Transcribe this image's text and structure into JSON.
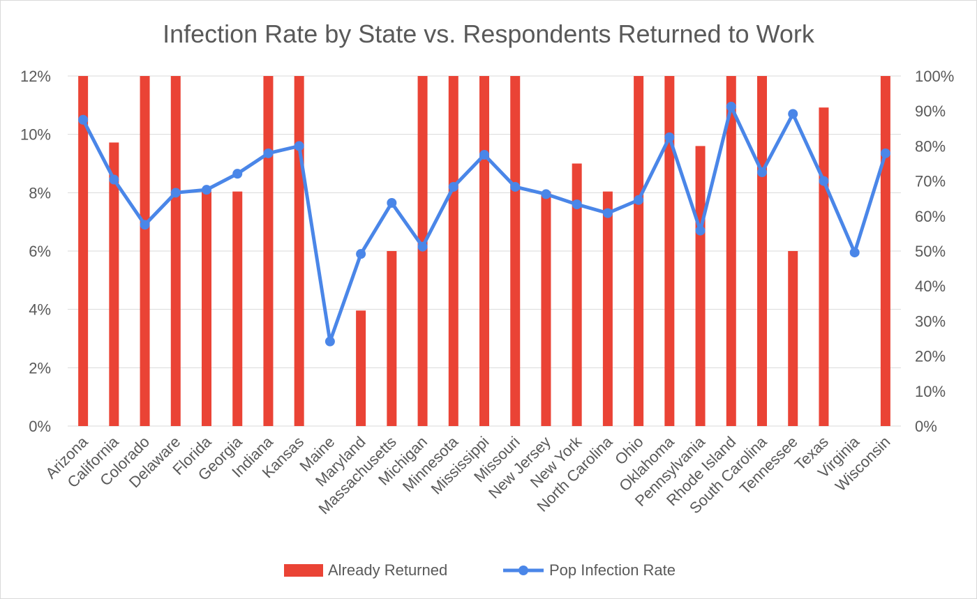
{
  "chart_data": {
    "type": "bar+line",
    "title": "Infection Rate by State vs. Respondents Returned to Work",
    "categories": [
      "Arizona",
      "California",
      "Colorado",
      "Delaware",
      "Florida",
      "Georgia",
      "Indiana",
      "Kansas",
      "Maine",
      "Maryland",
      "Massachusetts",
      "Michigan",
      "Minnesota",
      "Mississippi",
      "Missouri",
      "New Jersey",
      "New York",
      "North Carolina",
      "Ohio",
      "Oklahoma",
      "Pennsylvania",
      "Rhode Island",
      "South Carolina",
      "Tennessee",
      "Texas",
      "Virginia",
      "Wisconsin"
    ],
    "left_axis": {
      "ylim": [
        0,
        12
      ],
      "ticks": [
        0,
        2,
        4,
        6,
        8,
        10,
        12
      ],
      "tick_labels": [
        "0%",
        "2%",
        "4%",
        "6%",
        "8%",
        "10%",
        "12%"
      ]
    },
    "right_axis": {
      "ylim": [
        0,
        100
      ],
      "ticks": [
        0,
        10,
        20,
        30,
        40,
        50,
        60,
        70,
        80,
        90,
        100
      ],
      "tick_labels": [
        "0%",
        "10%",
        "20%",
        "30%",
        "40%",
        "50%",
        "60%",
        "70%",
        "80%",
        "90%",
        "100%"
      ]
    },
    "series": [
      {
        "name": "Already Returned",
        "type": "bar",
        "axis": "right",
        "color": "#ea4335",
        "values": [
          100,
          81,
          100,
          100,
          67,
          67,
          100,
          100,
          0,
          33,
          50,
          100,
          100,
          100,
          100,
          67,
          75,
          67,
          100,
          100,
          80,
          100,
          100,
          50,
          91,
          0,
          100
        ]
      },
      {
        "name": "Pop Infection Rate",
        "type": "line",
        "axis": "left",
        "color": "#4a86e8",
        "values": [
          10.5,
          8.45,
          6.9,
          8.0,
          8.1,
          8.65,
          9.35,
          9.6,
          2.9,
          5.9,
          7.65,
          6.15,
          8.2,
          9.3,
          8.2,
          7.95,
          7.6,
          7.3,
          7.75,
          9.9,
          6.7,
          10.95,
          8.7,
          10.7,
          8.4,
          5.95,
          9.35
        ]
      }
    ],
    "legend": {
      "position": "bottom"
    },
    "grid": true
  }
}
